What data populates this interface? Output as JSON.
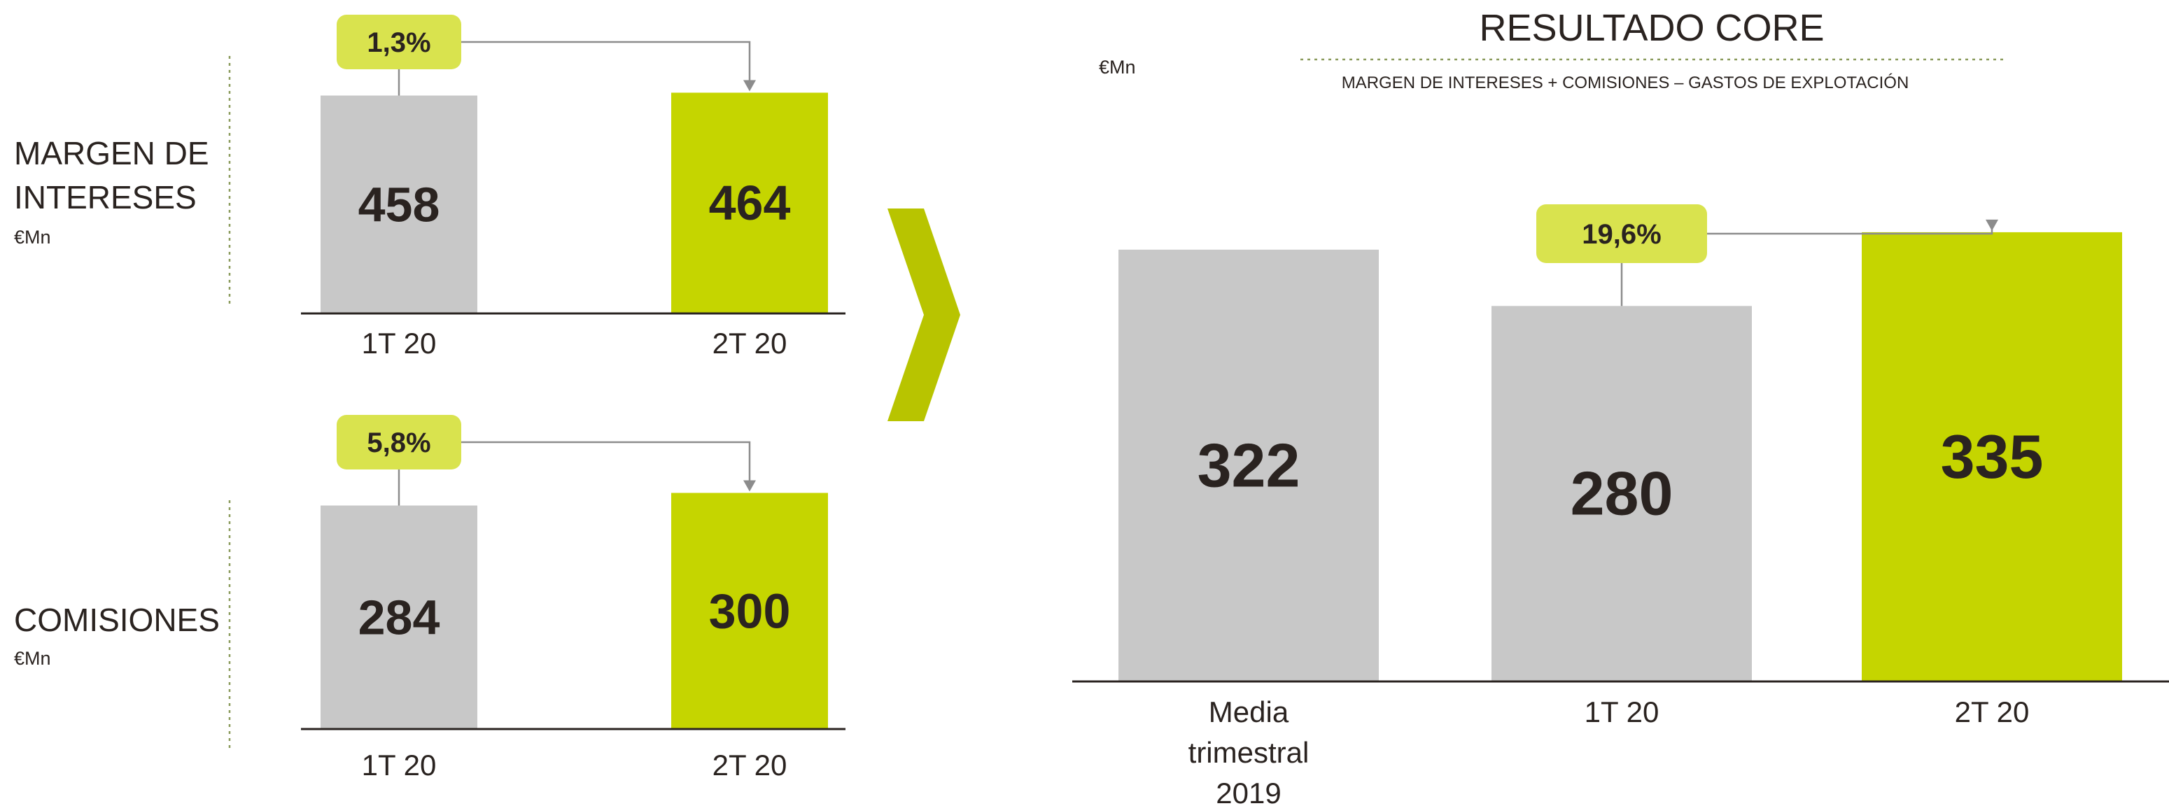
{
  "chart_data": [
    {
      "type": "bar",
      "title": "MARGEN DE INTERESES",
      "unit": "€Mn",
      "categories": [
        "1T 20",
        "2T 20"
      ],
      "values": [
        458,
        464
      ],
      "colors": [
        "#c8c8c8",
        "#c5d500"
      ],
      "change_label": "1,3%",
      "ylim": [
        0,
        500
      ]
    },
    {
      "type": "bar",
      "title": "COMISIONES",
      "unit": "€Mn",
      "categories": [
        "1T 20",
        "2T 20"
      ],
      "values": [
        284,
        300
      ],
      "colors": [
        "#c8c8c8",
        "#c5d500"
      ],
      "change_label": "5,8%",
      "ylim": [
        0,
        320
      ]
    },
    {
      "type": "bar",
      "title": "RESULTADO CORE",
      "subtitle": "MARGEN DE INTERESES + COMISIONES – GASTOS DE EXPLOTACIÓN",
      "unit": "€Mn",
      "categories": [
        "Media trimestral 2019",
        "1T 20",
        "2T 20"
      ],
      "values": [
        322,
        280,
        335
      ],
      "colors": [
        "#c8c8c8",
        "#c8c8c8",
        "#c5d500"
      ],
      "change_label": "19,6%",
      "ylim": [
        0,
        360
      ]
    }
  ],
  "labels": {
    "margen_line1": "MARGEN DE",
    "margen_line2": "INTERESES",
    "margen_unit": "€Mn",
    "comisiones": "COMISIONES",
    "comisiones_unit": "€Mn",
    "core_title": "RESULTADO CORE",
    "core_unit": "€Mn",
    "core_subtitle": "MARGEN DE INTERESES + COMISIONES – GASTOS DE EXPLOTACIÓN",
    "media_line1": "Media",
    "media_line2": "trimestral",
    "media_line3": "2019"
  },
  "colors": {
    "accent": "#c5d500",
    "arrow": "#b8c400",
    "grey_bar": "#c8c8c8",
    "pill": "#d9e34e",
    "text": "#2a2320",
    "dotted": "#8a9a5b"
  }
}
